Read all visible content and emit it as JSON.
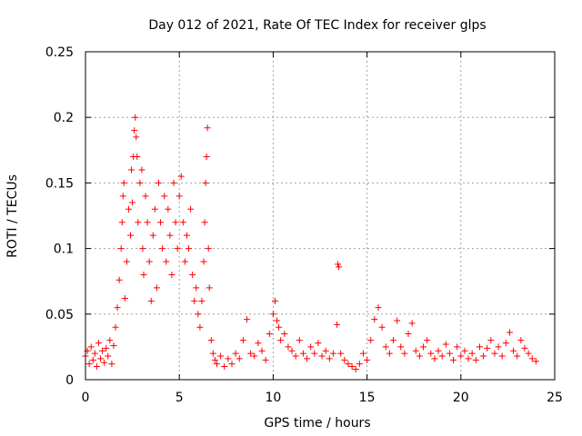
{
  "chart_data": {
    "type": "scatter",
    "title": "Day 012 of 2021, Rate Of TEC Index for receiver glps",
    "xlabel": "GPS time / hours",
    "ylabel": "ROTI / TECUs",
    "xlim": [
      0,
      25
    ],
    "ylim": [
      0,
      0.25
    ],
    "x_ticks": [
      0,
      5,
      10,
      15,
      20,
      25
    ],
    "x_tick_labels": [
      "0",
      "5",
      "10",
      "15",
      "20",
      "25"
    ],
    "y_ticks": [
      0,
      0.05,
      0.1,
      0.15,
      0.2,
      0.25
    ],
    "y_tick_labels": [
      "0",
      "0.05",
      "0.1",
      "0.15",
      "0.2",
      "0.25"
    ],
    "grid": true,
    "marker": "plus",
    "series": [
      {
        "name": "ROTI",
        "color": "#ff0000",
        "points": [
          [
            0.0,
            0.018
          ],
          [
            0.1,
            0.022
          ],
          [
            0.2,
            0.012
          ],
          [
            0.3,
            0.025
          ],
          [
            0.4,
            0.015
          ],
          [
            0.5,
            0.02
          ],
          [
            0.6,
            0.01
          ],
          [
            0.7,
            0.028
          ],
          [
            0.8,
            0.016
          ],
          [
            0.9,
            0.022
          ],
          [
            1.0,
            0.013
          ],
          [
            1.1,
            0.024
          ],
          [
            1.2,
            0.018
          ],
          [
            1.3,
            0.03
          ],
          [
            1.4,
            0.012
          ],
          [
            1.5,
            0.026
          ],
          [
            1.6,
            0.04
          ],
          [
            1.7,
            0.055
          ],
          [
            1.8,
            0.076
          ],
          [
            1.9,
            0.1
          ],
          [
            1.95,
            0.12
          ],
          [
            2.0,
            0.14
          ],
          [
            2.05,
            0.15
          ],
          [
            2.1,
            0.062
          ],
          [
            2.2,
            0.09
          ],
          [
            2.3,
            0.13
          ],
          [
            2.4,
            0.11
          ],
          [
            2.45,
            0.16
          ],
          [
            2.5,
            0.135
          ],
          [
            2.55,
            0.17
          ],
          [
            2.6,
            0.19
          ],
          [
            2.65,
            0.2
          ],
          [
            2.7,
            0.185
          ],
          [
            2.75,
            0.17
          ],
          [
            2.8,
            0.12
          ],
          [
            2.9,
            0.15
          ],
          [
            3.0,
            0.16
          ],
          [
            3.05,
            0.1
          ],
          [
            3.1,
            0.08
          ],
          [
            3.2,
            0.14
          ],
          [
            3.3,
            0.12
          ],
          [
            3.4,
            0.09
          ],
          [
            3.5,
            0.06
          ],
          [
            3.6,
            0.11
          ],
          [
            3.7,
            0.13
          ],
          [
            3.8,
            0.07
          ],
          [
            3.9,
            0.15
          ],
          [
            4.0,
            0.12
          ],
          [
            4.1,
            0.1
          ],
          [
            4.2,
            0.14
          ],
          [
            4.3,
            0.09
          ],
          [
            4.4,
            0.13
          ],
          [
            4.5,
            0.11
          ],
          [
            4.6,
            0.08
          ],
          [
            4.7,
            0.15
          ],
          [
            4.8,
            0.12
          ],
          [
            4.9,
            0.1
          ],
          [
            5.0,
            0.14
          ],
          [
            5.1,
            0.155
          ],
          [
            5.2,
            0.12
          ],
          [
            5.3,
            0.09
          ],
          [
            5.4,
            0.11
          ],
          [
            5.5,
            0.1
          ],
          [
            5.6,
            0.13
          ],
          [
            5.7,
            0.08
          ],
          [
            5.8,
            0.06
          ],
          [
            5.9,
            0.07
          ],
          [
            6.0,
            0.05
          ],
          [
            6.1,
            0.04
          ],
          [
            6.2,
            0.06
          ],
          [
            6.3,
            0.09
          ],
          [
            6.35,
            0.12
          ],
          [
            6.4,
            0.15
          ],
          [
            6.45,
            0.17
          ],
          [
            6.5,
            0.192
          ],
          [
            6.55,
            0.1
          ],
          [
            6.6,
            0.07
          ],
          [
            6.7,
            0.03
          ],
          [
            6.8,
            0.02
          ],
          [
            6.9,
            0.015
          ],
          [
            7.0,
            0.012
          ],
          [
            7.2,
            0.018
          ],
          [
            7.4,
            0.01
          ],
          [
            7.6,
            0.016
          ],
          [
            7.8,
            0.012
          ],
          [
            8.0,
            0.02
          ],
          [
            8.2,
            0.016
          ],
          [
            8.4,
            0.03
          ],
          [
            8.6,
            0.046
          ],
          [
            8.8,
            0.02
          ],
          [
            9.0,
            0.018
          ],
          [
            9.2,
            0.028
          ],
          [
            9.4,
            0.022
          ],
          [
            9.6,
            0.015
          ],
          [
            9.8,
            0.035
          ],
          [
            10.0,
            0.05
          ],
          [
            10.1,
            0.06
          ],
          [
            10.2,
            0.045
          ],
          [
            10.3,
            0.04
          ],
          [
            10.4,
            0.03
          ],
          [
            10.6,
            0.035
          ],
          [
            10.8,
            0.025
          ],
          [
            11.0,
            0.022
          ],
          [
            11.2,
            0.018
          ],
          [
            11.4,
            0.03
          ],
          [
            11.6,
            0.02
          ],
          [
            11.8,
            0.016
          ],
          [
            12.0,
            0.025
          ],
          [
            12.2,
            0.02
          ],
          [
            12.4,
            0.028
          ],
          [
            12.6,
            0.018
          ],
          [
            12.8,
            0.022
          ],
          [
            13.0,
            0.016
          ],
          [
            13.2,
            0.02
          ],
          [
            13.4,
            0.042
          ],
          [
            13.45,
            0.088
          ],
          [
            13.5,
            0.086
          ],
          [
            13.6,
            0.02
          ],
          [
            13.8,
            0.015
          ],
          [
            14.0,
            0.012
          ],
          [
            14.2,
            0.01
          ],
          [
            14.4,
            0.008
          ],
          [
            14.6,
            0.012
          ],
          [
            14.8,
            0.02
          ],
          [
            15.0,
            0.015
          ],
          [
            15.2,
            0.03
          ],
          [
            15.4,
            0.046
          ],
          [
            15.6,
            0.055
          ],
          [
            15.8,
            0.04
          ],
          [
            16.0,
            0.025
          ],
          [
            16.2,
            0.02
          ],
          [
            16.4,
            0.03
          ],
          [
            16.6,
            0.045
          ],
          [
            16.8,
            0.025
          ],
          [
            17.0,
            0.02
          ],
          [
            17.2,
            0.035
          ],
          [
            17.4,
            0.043
          ],
          [
            17.6,
            0.022
          ],
          [
            17.8,
            0.018
          ],
          [
            18.0,
            0.025
          ],
          [
            18.2,
            0.03
          ],
          [
            18.4,
            0.02
          ],
          [
            18.6,
            0.016
          ],
          [
            18.8,
            0.022
          ],
          [
            19.0,
            0.018
          ],
          [
            19.2,
            0.027
          ],
          [
            19.4,
            0.02
          ],
          [
            19.6,
            0.015
          ],
          [
            19.8,
            0.025
          ],
          [
            20.0,
            0.018
          ],
          [
            20.2,
            0.022
          ],
          [
            20.4,
            0.016
          ],
          [
            20.6,
            0.02
          ],
          [
            20.8,
            0.015
          ],
          [
            21.0,
            0.025
          ],
          [
            21.2,
            0.018
          ],
          [
            21.4,
            0.024
          ],
          [
            21.6,
            0.03
          ],
          [
            21.8,
            0.02
          ],
          [
            22.0,
            0.025
          ],
          [
            22.2,
            0.018
          ],
          [
            22.4,
            0.028
          ],
          [
            22.6,
            0.036
          ],
          [
            22.8,
            0.022
          ],
          [
            23.0,
            0.018
          ],
          [
            23.2,
            0.03
          ],
          [
            23.4,
            0.024
          ],
          [
            23.6,
            0.02
          ],
          [
            23.8,
            0.016
          ],
          [
            24.0,
            0.014
          ]
        ]
      }
    ]
  }
}
